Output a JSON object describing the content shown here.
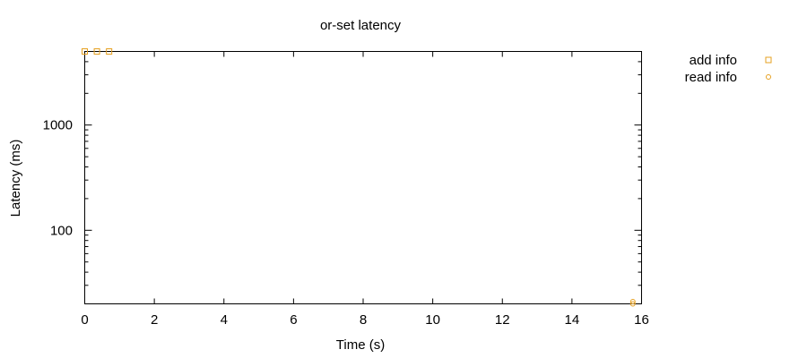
{
  "chart_data": {
    "type": "scatter",
    "title": "or-set latency",
    "xlabel": "Time (s)",
    "ylabel": "Latency (ms)",
    "xlim": [
      0,
      16
    ],
    "ylim": [
      20,
      5000
    ],
    "y_scale": "log",
    "x_ticks": [
      "0",
      "2",
      "4",
      "6",
      "8",
      "10",
      "12",
      "14",
      "16"
    ],
    "y_ticks": [
      {
        "value": 100,
        "label": "100"
      },
      {
        "value": 1000,
        "label": "1000"
      }
    ],
    "grid": false,
    "legend_position": "top-right, outside plot",
    "series": [
      {
        "name": "add info",
        "marker": "square",
        "color": "#e6a020",
        "x": [
          0.0,
          0.35,
          0.7
        ],
        "y": [
          5000,
          5000,
          5000
        ]
      },
      {
        "name": "read info",
        "marker": "circle",
        "color": "#e6a020",
        "x": [
          15.75,
          15.75
        ],
        "y": [
          21,
          20
        ]
      }
    ]
  }
}
